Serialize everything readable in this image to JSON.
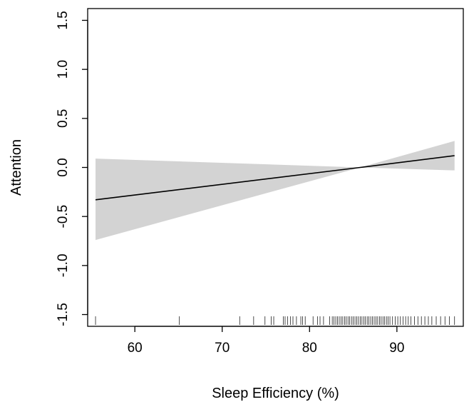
{
  "chart_data": {
    "type": "line",
    "title": "",
    "xlabel": "Sleep Efficiency (%)",
    "ylabel": "Attention",
    "xlim": [
      54.6,
      97.6
    ],
    "ylim": [
      -1.62,
      1.62
    ],
    "xticks": [
      60,
      70,
      80,
      90
    ],
    "xtick_labels": [
      "60",
      "70",
      "80",
      "90"
    ],
    "yticks": [
      -1.5,
      -1.0,
      -0.5,
      0.0,
      0.5,
      1.0,
      1.5
    ],
    "ytick_labels": [
      "-1.5",
      "-1.0",
      "-0.5",
      "0.0",
      "0.5",
      "1.0",
      "1.5"
    ],
    "grid": false,
    "series": [
      {
        "x": [
          55.5,
          85.8,
          96.6
        ],
        "y": [
          -0.33,
          0.0,
          0.12
        ]
      }
    ],
    "confidence_band": {
      "x": [
        55.5,
        85.8,
        96.6
      ],
      "lower": [
        -0.74,
        0.0,
        -0.03
      ],
      "upper": [
        0.09,
        0.0,
        0.27
      ]
    },
    "band_color": "#d3d3d3",
    "line_color": "#000000",
    "rug_x": [
      55.5,
      65.1,
      72.0,
      73.6,
      74.9,
      75.6,
      75.9,
      77.0,
      77.2,
      77.5,
      77.8,
      78.1,
      78.5,
      79.0,
      79.2,
      79.5,
      80.4,
      80.9,
      81.2,
      81.6,
      82.3,
      82.6,
      82.8,
      83.0,
      83.2,
      83.4,
      83.6,
      83.8,
      84.0,
      84.2,
      84.4,
      84.6,
      84.8,
      85.0,
      85.2,
      85.4,
      85.6,
      85.8,
      86.0,
      86.2,
      86.4,
      86.6,
      86.8,
      87.0,
      87.2,
      87.4,
      87.6,
      87.8,
      88.0,
      88.2,
      88.4,
      88.6,
      88.8,
      89.0,
      89.2,
      89.5,
      89.8,
      90.1,
      90.4,
      90.7,
      91.0,
      91.3,
      91.6,
      92.0,
      92.4,
      92.8,
      93.2,
      93.6,
      94.0,
      94.5,
      95.0,
      95.5,
      96.0,
      96.6
    ]
  }
}
